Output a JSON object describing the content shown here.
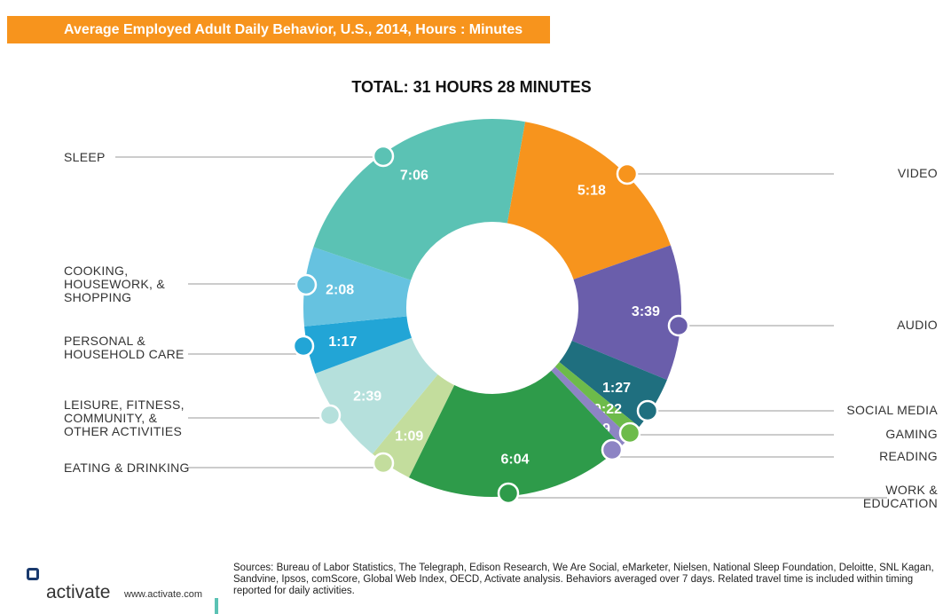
{
  "chart_data": {
    "type": "donut",
    "title": "Average Employed Adult Daily Behavior, U.S., 2014, Hours : Minutes",
    "subtitle": "TOTAL: 31 HOURS 28 MINUTES",
    "categories": [
      "VIDEO",
      "AUDIO",
      "SOCIAL MEDIA",
      "GAMING",
      "READING",
      "WORK & EDUCATION",
      "EATING & DRINKING",
      "LEISURE, FITNESS, COMMUNITY, & OTHER ACTIVITIES",
      "PERSONAL & HOUSEHOLD CARE",
      "COOKING, HOUSEWORK, & SHOPPING",
      "SLEEP"
    ],
    "values": [
      318,
      219,
      87,
      22,
      19,
      364,
      69,
      159,
      77,
      128,
      426
    ],
    "value_labels": [
      "5:18",
      "3:39",
      "1:27",
      "0:22",
      "0:19",
      "6:04",
      "1:09",
      "2:39",
      "1:17",
      "2:08",
      "7:06"
    ],
    "colors": [
      "#f7941d",
      "#6a5eab",
      "#1f6f7f",
      "#6dbb4a",
      "#8d84c4",
      "#2e9b4a",
      "#c3dd9d",
      "#b5e0dc",
      "#22a5d6",
      "#66c2e0",
      "#5bc2b4"
    ],
    "sources": "Sources: Bureau of Labor Statistics, The Telegraph, Edison Research, We Are Social, eMarketer, Nielsen, National Sleep Foundation, Deloitte, SNL Kagan, Sandvine, Ipsos, comScore, Global Web Index, OECD, Activate analysis.  Behaviors averaged over 7 days. Related travel time is included within timing reported for daily activities.",
    "brand": "activate",
    "url": "www.activate.com"
  }
}
